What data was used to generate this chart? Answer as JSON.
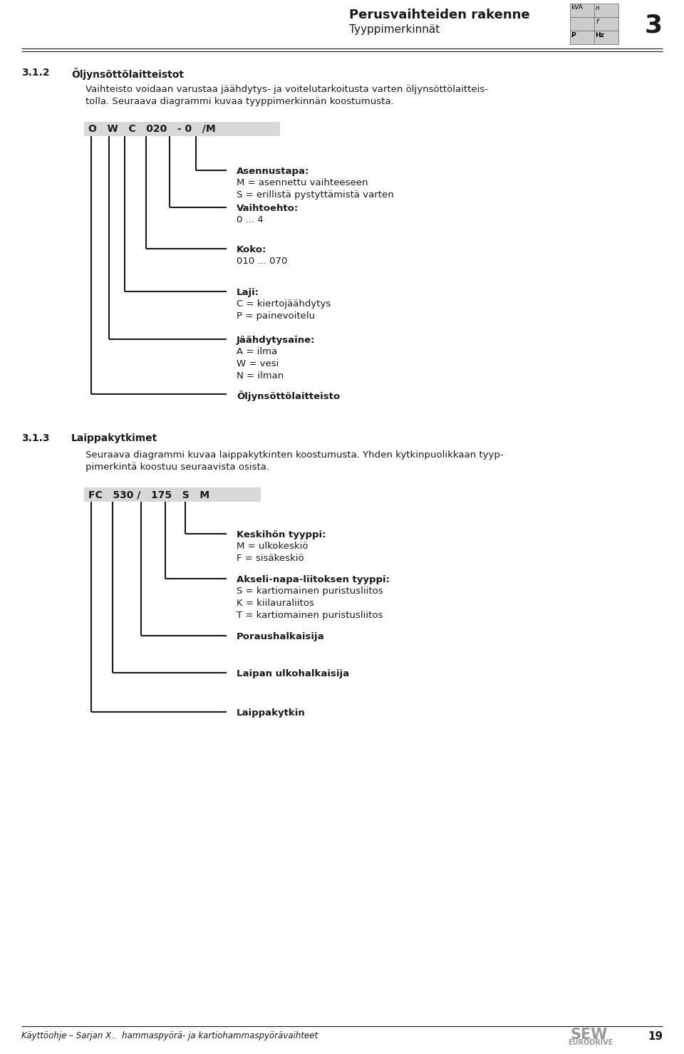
{
  "page_bg": "#ffffff",
  "header_title": "Perusvaihteiden rakenne",
  "header_subtitle": "Tyyppimerkinnät",
  "header_chapter": "3",
  "section1_num": "3.1.2",
  "section1_title": "Öljynsöttölaitteistot",
  "section1_body": "Vaihteisto voidaan varustaa jäähdytys- ja voitelutarkoitusta varten öljynsöttölaitteis-\ntolla. Seuraava diagrammi kuvaa tyyppimerkinnän koostumusta.",
  "diag1_box_text": "O   W   C   020   - 0   /M",
  "diag1_items": [
    {
      "col_idx": 5,
      "bold": "Asennustapa:",
      "normal": "M = asennettu vaihteeseen\nS = erillistä pystyttämistä varten"
    },
    {
      "col_idx": 4,
      "bold": "Vaihtoehto:",
      "normal": "0 ... 4"
    },
    {
      "col_idx": 3,
      "bold": "Koko:",
      "normal": "010 ... 070"
    },
    {
      "col_idx": 2,
      "bold": "Laji:",
      "normal": "C = kiertojäähdytys\nP = painevoitelu"
    },
    {
      "col_idx": 1,
      "bold": "Jäähdytysaine:",
      "normal": "A = ilma\nW = vesi\nN = ilman"
    },
    {
      "col_idx": 0,
      "bold": null,
      "normal": "Öljynsöttölaitteisto"
    }
  ],
  "section2_num": "3.1.3",
  "section2_title": "Laippakytkimet",
  "section2_body": "Seuraava diagrammi kuvaa laippakytkinten koostumusta. Yhden kytkinpuolikkaan tyyp-\npimerkintä koostuu seuraavista osista.",
  "diag2_box_text": "FC   530 /   175   S   M",
  "diag2_items": [
    {
      "col_idx": 4,
      "bold": "Keskihön tyyppi:",
      "normal": "M = ulkokeskiö\nF = sisäkeskiö"
    },
    {
      "col_idx": 3,
      "bold": "Akseli-napa-liitoksen tyyppi:",
      "normal": "S = kartiomainen puristusliitos\nK = kiilauraliitos\nT = kartiomainen puristusliitos"
    },
    {
      "col_idx": 2,
      "bold": null,
      "normal": "Poraushalkaisija"
    },
    {
      "col_idx": 1,
      "bold": null,
      "normal": "Laipan ulkohalkaisija"
    },
    {
      "col_idx": 0,
      "bold": null,
      "normal": "Laippakytkin"
    }
  ],
  "footer_text": "Käyttöohje – Sarjan X..  hammaspyörä- ja kartiohammaspyörävaihteet",
  "footer_page": "19",
  "text_color": "#1a1a1a",
  "line_color": "#1a1a1a",
  "box_color": "#d8d8d8"
}
